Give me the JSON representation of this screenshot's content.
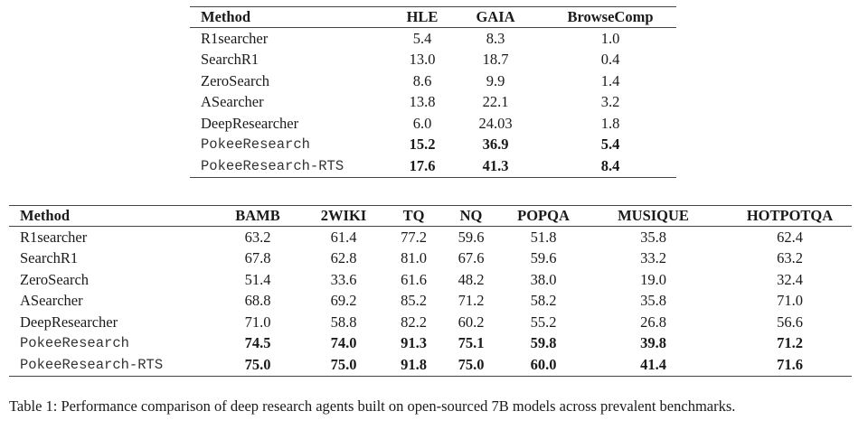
{
  "table_top": {
    "headers": [
      "Method",
      "HLE",
      "GAIA",
      "BrowseComp"
    ],
    "rows": [
      {
        "method": "R1searcher",
        "values": [
          "5.4",
          "8.3",
          "1.0"
        ],
        "bold": false
      },
      {
        "method": "SearchR1",
        "values": [
          "13.0",
          "18.7",
          "0.4"
        ],
        "bold": false
      },
      {
        "method": "ZeroSearch",
        "values": [
          "8.6",
          "9.9",
          "1.4"
        ],
        "bold": false
      },
      {
        "method": "ASearcher",
        "values": [
          "13.8",
          "22.1",
          "3.2"
        ],
        "bold": false
      },
      {
        "method": "DeepResearcher",
        "values": [
          "6.0",
          "24.03",
          "1.8"
        ],
        "bold": false
      },
      {
        "method": "PokeeResearch",
        "values": [
          "15.2",
          "36.9",
          "5.4"
        ],
        "bold": true
      },
      {
        "method": "PokeeResearch-RTS",
        "values": [
          "17.6",
          "41.3",
          "8.4"
        ],
        "bold": true
      }
    ]
  },
  "table_bottom": {
    "headers": [
      "Method",
      "BAMB",
      "2WIKI",
      "TQ",
      "NQ",
      "POPQA",
      "MUSIQUE",
      "HOTPOTQA"
    ],
    "rows": [
      {
        "method": "R1searcher",
        "values": [
          "63.2",
          "61.4",
          "77.2",
          "59.6",
          "51.8",
          "35.8",
          "62.4"
        ],
        "bold": false
      },
      {
        "method": "SearchR1",
        "values": [
          "67.8",
          "62.8",
          "81.0",
          "67.6",
          "59.6",
          "33.2",
          "63.2"
        ],
        "bold": false
      },
      {
        "method": "ZeroSearch",
        "values": [
          "51.4",
          "33.6",
          "61.6",
          "48.2",
          "38.0",
          "19.0",
          "32.4"
        ],
        "bold": false
      },
      {
        "method": "ASearcher",
        "values": [
          "68.8",
          "69.2",
          "85.2",
          "71.2",
          "58.2",
          "35.8",
          "71.0"
        ],
        "bold": false
      },
      {
        "method": "DeepResearcher",
        "values": [
          "71.0",
          "58.8",
          "82.2",
          "60.2",
          "55.2",
          "26.8",
          "56.6"
        ],
        "bold": false
      },
      {
        "method": "PokeeResearch",
        "values": [
          "74.5",
          "74.0",
          "91.3",
          "75.1",
          "59.8",
          "39.8",
          "71.2"
        ],
        "bold": true
      },
      {
        "method": "PokeeResearch-RTS",
        "values": [
          "75.0",
          "75.0",
          "91.8",
          "75.0",
          "60.0",
          "41.4",
          "71.6"
        ],
        "bold": true
      }
    ]
  },
  "caption": "Table 1: Performance comparison of deep research agents built on open-sourced 7B models across prevalent benchmarks."
}
